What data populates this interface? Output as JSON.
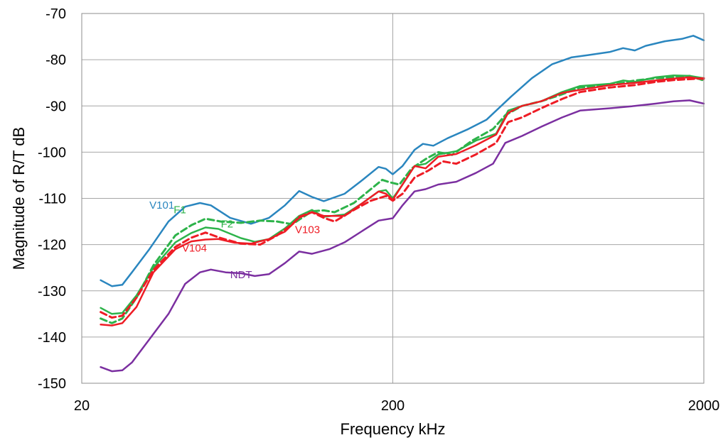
{
  "chart_data": {
    "type": "line",
    "xlabel": "Frequency  kHz",
    "ylabel": "Magnitude of R/T  dB",
    "x_scale": "log",
    "xlim": [
      20,
      2000
    ],
    "ylim": [
      -150,
      -70
    ],
    "x_ticks": [
      "20",
      "200",
      "2000"
    ],
    "y_ticks": [
      "-70",
      "-80",
      "-90",
      "-100",
      "-110",
      "-120",
      "-130",
      "-140",
      "-150"
    ],
    "grid": true,
    "legend": "inline labels",
    "series": [
      {
        "name": "V101",
        "color": "#2a86bf",
        "dash": false,
        "points": [
          [
            23,
            -127.7
          ],
          [
            25,
            -129.0
          ],
          [
            27,
            -128.7
          ],
          [
            29,
            -126
          ],
          [
            33,
            -121
          ],
          [
            38,
            -115
          ],
          [
            43,
            -111.8
          ],
          [
            48,
            -111
          ],
          [
            52,
            -111.5
          ],
          [
            60,
            -114.2
          ],
          [
            70,
            -115.5
          ],
          [
            80,
            -114.2
          ],
          [
            90,
            -111.5
          ],
          [
            100,
            -108.4
          ],
          [
            110,
            -109.7
          ],
          [
            120,
            -110.6
          ],
          [
            140,
            -109
          ],
          [
            160,
            -106
          ],
          [
            180,
            -103.2
          ],
          [
            190,
            -103.6
          ],
          [
            200,
            -104.8
          ],
          [
            215,
            -103
          ],
          [
            235,
            -99.5
          ],
          [
            250,
            -98.2
          ],
          [
            270,
            -98.6
          ],
          [
            300,
            -97
          ],
          [
            350,
            -95
          ],
          [
            400,
            -93
          ],
          [
            480,
            -88
          ],
          [
            560,
            -84
          ],
          [
            650,
            -81
          ],
          [
            750,
            -79.5
          ],
          [
            850,
            -79
          ],
          [
            1000,
            -78.3
          ],
          [
            1100,
            -77.5
          ],
          [
            1200,
            -78
          ],
          [
            1300,
            -77
          ],
          [
            1500,
            -76
          ],
          [
            1700,
            -75.5
          ],
          [
            1850,
            -74.8
          ],
          [
            2000,
            -75.8
          ]
        ]
      },
      {
        "name": "F1",
        "color": "#2db34a",
        "dash": true,
        "points": [
          [
            23,
            -136
          ],
          [
            25,
            -137
          ],
          [
            27,
            -136
          ],
          [
            30,
            -131.5
          ],
          [
            34,
            -124.5
          ],
          [
            40,
            -118
          ],
          [
            45,
            -115.8
          ],
          [
            50,
            -114.4
          ],
          [
            56,
            -115
          ],
          [
            65,
            -115.3
          ],
          [
            75,
            -114.8
          ],
          [
            85,
            -115
          ],
          [
            95,
            -115.6
          ],
          [
            100,
            -114.6
          ],
          [
            110,
            -112.8
          ],
          [
            120,
            -112.6
          ],
          [
            130,
            -113
          ],
          [
            150,
            -111
          ],
          [
            170,
            -108
          ],
          [
            185,
            -106
          ],
          [
            195,
            -106.5
          ],
          [
            210,
            -107
          ],
          [
            230,
            -103.5
          ],
          [
            255,
            -101.5
          ],
          [
            280,
            -100
          ],
          [
            310,
            -100.6
          ],
          [
            360,
            -97.5
          ],
          [
            420,
            -95
          ],
          [
            460,
            -92
          ],
          [
            520,
            -90
          ],
          [
            600,
            -89
          ],
          [
            700,
            -87.5
          ],
          [
            800,
            -86
          ],
          [
            1000,
            -85.5
          ],
          [
            1200,
            -84.5
          ],
          [
            1400,
            -84
          ],
          [
            1600,
            -83.8
          ],
          [
            1800,
            -83.5
          ],
          [
            2000,
            -84.5
          ]
        ]
      },
      {
        "name": "F2",
        "color": "#2db34a",
        "dash": false,
        "points": [
          [
            23,
            -133.7
          ],
          [
            25,
            -135
          ],
          [
            27,
            -134.8
          ],
          [
            30,
            -131
          ],
          [
            34,
            -125
          ],
          [
            40,
            -119.5
          ],
          [
            45,
            -117.5
          ],
          [
            50,
            -116.3
          ],
          [
            55,
            -116.6
          ],
          [
            65,
            -118.6
          ],
          [
            72,
            -119.4
          ],
          [
            80,
            -118.8
          ],
          [
            90,
            -116.5
          ],
          [
            100,
            -113.8
          ],
          [
            110,
            -112.5
          ],
          [
            120,
            -114
          ],
          [
            140,
            -113.5
          ],
          [
            160,
            -111
          ],
          [
            180,
            -108.5
          ],
          [
            190,
            -108.2
          ],
          [
            200,
            -110
          ],
          [
            215,
            -107
          ],
          [
            235,
            -103
          ],
          [
            255,
            -102.5
          ],
          [
            280,
            -100.5
          ],
          [
            320,
            -99.8
          ],
          [
            370,
            -97.5
          ],
          [
            430,
            -96
          ],
          [
            470,
            -91
          ],
          [
            520,
            -90
          ],
          [
            600,
            -89
          ],
          [
            700,
            -87
          ],
          [
            800,
            -85.7
          ],
          [
            1000,
            -85.2
          ],
          [
            1100,
            -84.5
          ],
          [
            1200,
            -84.8
          ],
          [
            1400,
            -83.8
          ],
          [
            1600,
            -83.4
          ],
          [
            1800,
            -83.5
          ],
          [
            2000,
            -84
          ]
        ]
      },
      {
        "name": "V103",
        "color": "#ee1c25",
        "dash": true,
        "points": [
          [
            23,
            -134.6
          ],
          [
            25,
            -135.8
          ],
          [
            27,
            -135.4
          ],
          [
            30,
            -131.5
          ],
          [
            34,
            -125.5
          ],
          [
            40,
            -120.5
          ],
          [
            45,
            -118.5
          ],
          [
            50,
            -117.4
          ],
          [
            56,
            -118.6
          ],
          [
            65,
            -119.8
          ],
          [
            75,
            -120
          ],
          [
            85,
            -118
          ],
          [
            95,
            -115.6
          ],
          [
            100,
            -114
          ],
          [
            110,
            -113
          ],
          [
            120,
            -114.2
          ],
          [
            130,
            -115
          ],
          [
            150,
            -112.5
          ],
          [
            170,
            -110.5
          ],
          [
            190,
            -109.5
          ],
          [
            200,
            -110.5
          ],
          [
            215,
            -109
          ],
          [
            235,
            -105.5
          ],
          [
            260,
            -104
          ],
          [
            290,
            -102
          ],
          [
            320,
            -102.5
          ],
          [
            370,
            -100.5
          ],
          [
            430,
            -98
          ],
          [
            470,
            -93.5
          ],
          [
            520,
            -92.5
          ],
          [
            600,
            -90.5
          ],
          [
            700,
            -88.5
          ],
          [
            800,
            -87
          ],
          [
            1000,
            -86
          ],
          [
            1200,
            -85.5
          ],
          [
            1400,
            -84.8
          ],
          [
            1600,
            -84.4
          ],
          [
            1800,
            -84.2
          ],
          [
            2000,
            -84
          ]
        ]
      },
      {
        "name": "V104",
        "color": "#ee1c25",
        "dash": false,
        "points": [
          [
            23,
            -137.3
          ],
          [
            25,
            -137.5
          ],
          [
            27,
            -137
          ],
          [
            30,
            -133.5
          ],
          [
            34,
            -126
          ],
          [
            40,
            -121
          ],
          [
            45,
            -119.3
          ],
          [
            50,
            -118.9
          ],
          [
            55,
            -118.8
          ],
          [
            62,
            -119.6
          ],
          [
            70,
            -119.8
          ],
          [
            80,
            -118.8
          ],
          [
            90,
            -117.2
          ],
          [
            100,
            -114.2
          ],
          [
            110,
            -113
          ],
          [
            120,
            -113.8
          ],
          [
            140,
            -113.8
          ],
          [
            160,
            -111
          ],
          [
            180,
            -108.5
          ],
          [
            190,
            -109
          ],
          [
            200,
            -110.3
          ],
          [
            215,
            -107
          ],
          [
            235,
            -103
          ],
          [
            255,
            -103.5
          ],
          [
            280,
            -101
          ],
          [
            320,
            -100.4
          ],
          [
            370,
            -98.5
          ],
          [
            430,
            -96.2
          ],
          [
            470,
            -91.5
          ],
          [
            520,
            -90
          ],
          [
            600,
            -89
          ],
          [
            700,
            -87.2
          ],
          [
            800,
            -86.5
          ],
          [
            1000,
            -85.5
          ],
          [
            1200,
            -85
          ],
          [
            1400,
            -84.5
          ],
          [
            1600,
            -84.1
          ],
          [
            1800,
            -83.8
          ],
          [
            2000,
            -84.2
          ]
        ]
      },
      {
        "name": "NDT",
        "color": "#7b2fa0",
        "dash": false,
        "points": [
          [
            23,
            -146.5
          ],
          [
            25,
            -147.4
          ],
          [
            27,
            -147.2
          ],
          [
            29,
            -145.5
          ],
          [
            33,
            -140.5
          ],
          [
            38,
            -135
          ],
          [
            43,
            -128.5
          ],
          [
            48,
            -126
          ],
          [
            52,
            -125.4
          ],
          [
            58,
            -126
          ],
          [
            65,
            -126.2
          ],
          [
            72,
            -126.8
          ],
          [
            80,
            -126.4
          ],
          [
            90,
            -124
          ],
          [
            100,
            -121.5
          ],
          [
            110,
            -122
          ],
          [
            125,
            -121
          ],
          [
            140,
            -119.5
          ],
          [
            160,
            -117
          ],
          [
            180,
            -114.8
          ],
          [
            200,
            -114.3
          ],
          [
            215,
            -111.5
          ],
          [
            235,
            -108.5
          ],
          [
            255,
            -108
          ],
          [
            280,
            -107
          ],
          [
            320,
            -106.4
          ],
          [
            370,
            -104.5
          ],
          [
            420,
            -102.5
          ],
          [
            460,
            -98
          ],
          [
            520,
            -96.5
          ],
          [
            600,
            -94.5
          ],
          [
            700,
            -92.5
          ],
          [
            800,
            -91
          ],
          [
            1000,
            -90.5
          ],
          [
            1200,
            -90
          ],
          [
            1400,
            -89.5
          ],
          [
            1600,
            -89
          ],
          [
            1800,
            -88.8
          ],
          [
            2000,
            -89.5
          ]
        ]
      }
    ],
    "annotations": [
      {
        "text": "V101",
        "x": 33,
        "y": -112.2,
        "color": "#2a86bf"
      },
      {
        "text": "F1",
        "x": 39.5,
        "y": -113.2,
        "color": "#2db34a"
      },
      {
        "text": "F2",
        "x": 56,
        "y": -116.3,
        "color": "#2db34a"
      },
      {
        "text": "V103",
        "x": 97,
        "y": -117.5,
        "color": "#ee1c25"
      },
      {
        "text": "V104",
        "x": 42,
        "y": -121.5,
        "color": "#ee1c25"
      },
      {
        "text": "NDT",
        "x": 60,
        "y": -127.3,
        "color": "#7b2fa0"
      }
    ]
  }
}
